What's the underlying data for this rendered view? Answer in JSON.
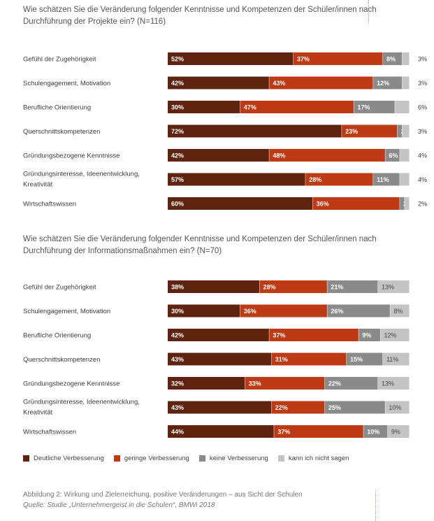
{
  "colors": {
    "deutlich": "#5e2410",
    "gering": "#bd3a14",
    "keine": "#8a8a8a",
    "kann": "#c4c4c4",
    "outside_label": "#3c3c3c"
  },
  "legend": [
    {
      "label": "Deutliche Verbesserung",
      "color": "#5e2410"
    },
    {
      "label": "geringe Verbesserung",
      "color": "#bd3a14"
    },
    {
      "label": "keine Verbesserung",
      "color": "#8a8a8a"
    },
    {
      "label": "kann ich nicht sagen",
      "color": "#c4c4c4"
    }
  ],
  "caption": {
    "line1": "Abbildung 2: Wirkung und Zielerreichung, positive Veränderungen – aus Sicht der Schulen",
    "line2": "Quelle: Studie „Unternehmergeist in die Schulen“, BMWi 2018"
  },
  "chart_data": [
    {
      "type": "bar",
      "stacked": true,
      "orientation": "horizontal",
      "title": "Wie schätzen Sie die Veränderung folgender Kenntnisse und Kompetenzen der Schüler/innen nach Durchführung der Projekte ein? (N=116)",
      "categories": [
        [
          "Gefühl der Zugehörigkeit"
        ],
        [
          "Schulengagement, Motivation"
        ],
        [
          "Berufliche Orientierung"
        ],
        [
          "Querschnittskompetenzen"
        ],
        [
          "Gründungsbezogene Kenntnisse"
        ],
        [
          "Gründungsinteresse, Ideenentwicklung,",
          "Kreativität"
        ],
        [
          "Wirtschaftswissen"
        ]
      ],
      "series": [
        {
          "name": "Deutliche Verbesserung",
          "values": [
            52,
            42,
            30,
            72,
            42,
            57,
            60
          ]
        },
        {
          "name": "geringe Verbesserung",
          "values": [
            37,
            43,
            47,
            23,
            48,
            28,
            36
          ]
        },
        {
          "name": "keine Verbesserung",
          "values": [
            8,
            12,
            17,
            2,
            6,
            11,
            2
          ]
        },
        {
          "name": "kann ich nicht sagen",
          "values": [
            3,
            3,
            6,
            3,
            4,
            4,
            2
          ]
        }
      ],
      "unit": "%",
      "xlim": [
        0,
        100
      ]
    },
    {
      "type": "bar",
      "stacked": true,
      "orientation": "horizontal",
      "title": "Wie schätzen Sie die Veränderung folgender Kenntnisse und Kompetenzen der Schüler/innen nach Durchführung der Informationsmaßnahmen ein? (N=70)",
      "categories": [
        [
          "Gefühl der Zugehörigkeit"
        ],
        [
          "Schulengagement, Motivation"
        ],
        [
          "Berufliche Orientierung"
        ],
        [
          "Querschnittskompetenzen"
        ],
        [
          "Gründungsbezogene Kenntnisse"
        ],
        [
          "Gründungsinteresse, Ideenentwicklung,",
          "Kreativität"
        ],
        [
          "Wirtschaftswissen"
        ]
      ],
      "series": [
        {
          "name": "Deutliche Verbesserung",
          "values": [
            38,
            30,
            42,
            43,
            32,
            43,
            44
          ]
        },
        {
          "name": "geringe Verbesserung",
          "values": [
            28,
            36,
            37,
            31,
            33,
            22,
            37
          ]
        },
        {
          "name": "keine Verbesserung",
          "values": [
            21,
            26,
            9,
            15,
            22,
            25,
            10
          ]
        },
        {
          "name": "kann ich nicht sagen",
          "values": [
            13,
            8,
            12,
            11,
            13,
            10,
            9
          ]
        }
      ],
      "unit": "%",
      "xlim": [
        0,
        100
      ]
    }
  ]
}
